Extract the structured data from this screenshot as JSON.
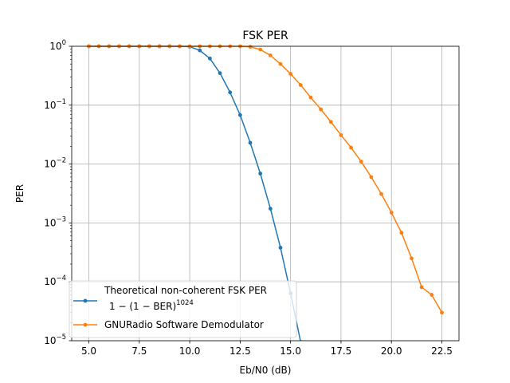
{
  "chart_data": {
    "type": "line",
    "title": "FSK PER",
    "xlabel": "Eb/N0 (dB)",
    "ylabel": "PER",
    "xlim": [
      4.15,
      23.35
    ],
    "ylim": [
      1e-05,
      1
    ],
    "yscale": "log",
    "grid": true,
    "legend_position": "lower-left",
    "x_ticks": [
      5.0,
      7.5,
      10.0,
      12.5,
      15.0,
      17.5,
      20.0,
      22.5
    ],
    "x_tick_labels": [
      "5.0",
      "7.5",
      "10.0",
      "12.5",
      "15.0",
      "17.5",
      "20.0",
      "22.5"
    ],
    "y_ticks": [
      {
        "value": 1e-05,
        "base": "10",
        "exp": "−5"
      },
      {
        "value": 0.0001,
        "base": "10",
        "exp": "−4"
      },
      {
        "value": 0.001,
        "base": "10",
        "exp": "−3"
      },
      {
        "value": 0.01,
        "base": "10",
        "exp": "−2"
      },
      {
        "value": 0.1,
        "base": "10",
        "exp": "−1"
      },
      {
        "value": 1,
        "base": "10",
        "exp": "0"
      }
    ],
    "series": [
      {
        "name": "Theoretical non-coherent FSK PER",
        "name_formula": "1 − (1 − BER)",
        "name_formula_exp": "1024",
        "color": "#1f77b4",
        "x": [
          5.0,
          5.5,
          6.0,
          6.5,
          7.0,
          7.5,
          8.0,
          8.5,
          9.0,
          9.5,
          10.0,
          10.5,
          11.0,
          11.5,
          12.0,
          12.5,
          13.0,
          13.5,
          14.0,
          14.5,
          15.0,
          15.5
        ],
        "values": [
          1,
          1,
          1,
          1,
          1,
          1,
          1,
          1,
          1,
          1,
          0.985,
          0.85,
          0.62,
          0.35,
          0.165,
          0.068,
          0.023,
          0.0069,
          0.00175,
          0.00038,
          6.4e-05,
          9.5e-06
        ]
      },
      {
        "name": "GNURadio Software Demodulator",
        "color": "#ff7f0e",
        "x": [
          5.0,
          5.5,
          6.0,
          6.5,
          7.0,
          7.5,
          8.0,
          8.5,
          9.0,
          9.5,
          10.0,
          10.5,
          11.0,
          11.5,
          12.0,
          12.5,
          13.0,
          13.5,
          14.0,
          14.5,
          15.0,
          15.5,
          16.0,
          16.5,
          17.0,
          17.5,
          18.0,
          18.5,
          19.0,
          19.5,
          20.0,
          20.5,
          21.0,
          21.5,
          22.0,
          22.5
        ],
        "values": [
          1,
          1,
          1,
          1,
          1,
          1,
          1,
          1,
          1,
          1,
          1,
          1,
          1,
          1,
          1,
          1,
          0.98,
          0.88,
          0.7,
          0.5,
          0.34,
          0.22,
          0.135,
          0.085,
          0.052,
          0.031,
          0.019,
          0.011,
          0.006,
          0.0031,
          0.0015,
          0.00068,
          0.00025,
          8.1e-05,
          6e-05,
          3e-05
        ]
      }
    ]
  }
}
